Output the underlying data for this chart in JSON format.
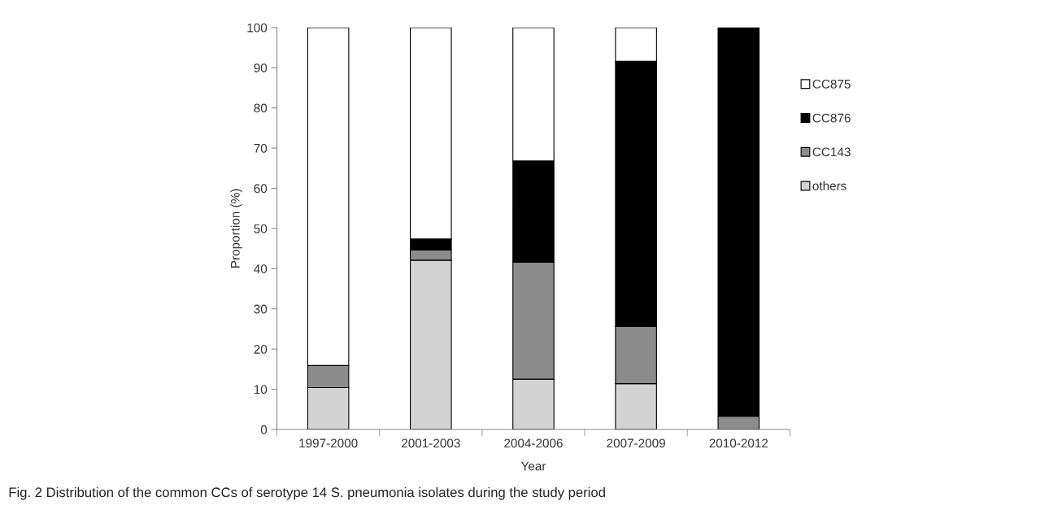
{
  "chart_data": {
    "type": "bar",
    "stacked": true,
    "xlabel": "Year",
    "ylabel": "Proportion (%)",
    "categories": [
      "1997-2000",
      "2001-2003",
      "2004-2006",
      "2007-2009",
      "2010-2012"
    ],
    "series": [
      {
        "name": "others",
        "color": "#d3d3d3",
        "values": [
          10.4,
          42.1,
          12.5,
          11.4,
          0
        ]
      },
      {
        "name": "CC143",
        "color": "#8c8c8c",
        "values": [
          5.5,
          2.6,
          29.1,
          14.2,
          3.3
        ]
      },
      {
        "name": "CC876",
        "color": "#000000",
        "values": [
          0,
          2.7,
          25.2,
          66.0,
          96.7
        ]
      },
      {
        "name": "CC875",
        "color": "#ffffff",
        "values": [
          84.1,
          52.6,
          33.2,
          8.4,
          0
        ]
      }
    ],
    "ylim": [
      0,
      100
    ],
    "yticks": [
      0,
      10,
      20,
      30,
      40,
      50,
      60,
      70,
      80,
      90,
      100
    ],
    "grid": false,
    "legend": "right",
    "annotations": [
      "Fig. 2 Distribution of the common CCs of serotype 14 S. pneumonia isolates during the study period"
    ]
  }
}
